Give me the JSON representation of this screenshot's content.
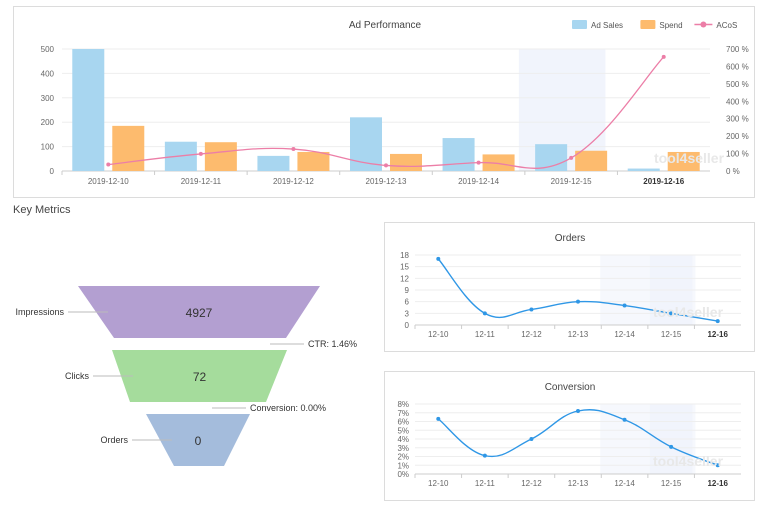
{
  "key_metrics_title": "Key Metrics",
  "colors": {
    "ad_sales": "#a8d6f0",
    "spend": "#fdbb6e",
    "acos": "#ec7ea7",
    "line": "#2f97e6",
    "impressions": "#b39fd1",
    "clicks": "#a5dc9c",
    "orders": "#a4bcdc",
    "highlight": "#f1f4fc"
  },
  "watermark": "tool4seller",
  "chart_data": [
    {
      "type": "bar",
      "title": "Ad Performance",
      "categories": [
        "2019-12-10",
        "2019-12-11",
        "2019-12-12",
        "2019-12-13",
        "2019-12-14",
        "2019-12-15",
        "2019-12-16"
      ],
      "series": [
        {
          "name": "Ad Sales",
          "type": "bar",
          "values": [
            500,
            120,
            62,
            220,
            135,
            110,
            10
          ]
        },
        {
          "name": "Spend",
          "type": "bar",
          "values": [
            185,
            118,
            78,
            70,
            68,
            83,
            78
          ]
        },
        {
          "name": "ACoS",
          "type": "line",
          "axis": "right",
          "values": [
            37,
            98,
            126,
            32,
            48,
            75,
            655
          ]
        }
      ],
      "ylim": [
        0,
        500
      ],
      "yticks": [
        "0",
        "100",
        "200",
        "300",
        "400",
        "500"
      ],
      "y2lim": [
        0,
        700
      ],
      "y2ticks": [
        "0 %",
        "100 %",
        "200 %",
        "300 %",
        "400 %",
        "500 %",
        "600 %",
        "700 %"
      ],
      "legend": "top-right",
      "grid": true
    },
    {
      "type": "line",
      "title": "Orders",
      "categories": [
        "12-10",
        "12-11",
        "12-12",
        "12-13",
        "12-14",
        "12-15",
        "12-16"
      ],
      "series": [
        {
          "values": [
            17,
            3,
            4,
            6,
            5,
            3,
            1
          ]
        }
      ],
      "ylim": [
        0,
        18
      ],
      "yticks": [
        "0",
        "3",
        "6",
        "9",
        "12",
        "15",
        "18"
      ],
      "grid": true
    },
    {
      "type": "line",
      "title": "Conversion",
      "categories": [
        "12-10",
        "12-11",
        "12-12",
        "12-13",
        "12-14",
        "12-15",
        "12-16"
      ],
      "series": [
        {
          "values": [
            6.3,
            2.1,
            4.0,
            7.2,
            6.2,
            3.1,
            1.0
          ]
        }
      ],
      "ylim": [
        0,
        8
      ],
      "yticks": [
        "0%",
        "1%",
        "2%",
        "3%",
        "4%",
        "5%",
        "6%",
        "7%",
        "8%"
      ],
      "grid": true
    }
  ],
  "funnel": {
    "stages": [
      {
        "label": "Impressions",
        "value": "4927"
      },
      {
        "label": "Clicks",
        "value": "72"
      },
      {
        "label": "Orders",
        "value": "0"
      }
    ],
    "rates": [
      {
        "label": "CTR: 1.46%"
      },
      {
        "label": "Conversion: 0.00%"
      }
    ]
  }
}
